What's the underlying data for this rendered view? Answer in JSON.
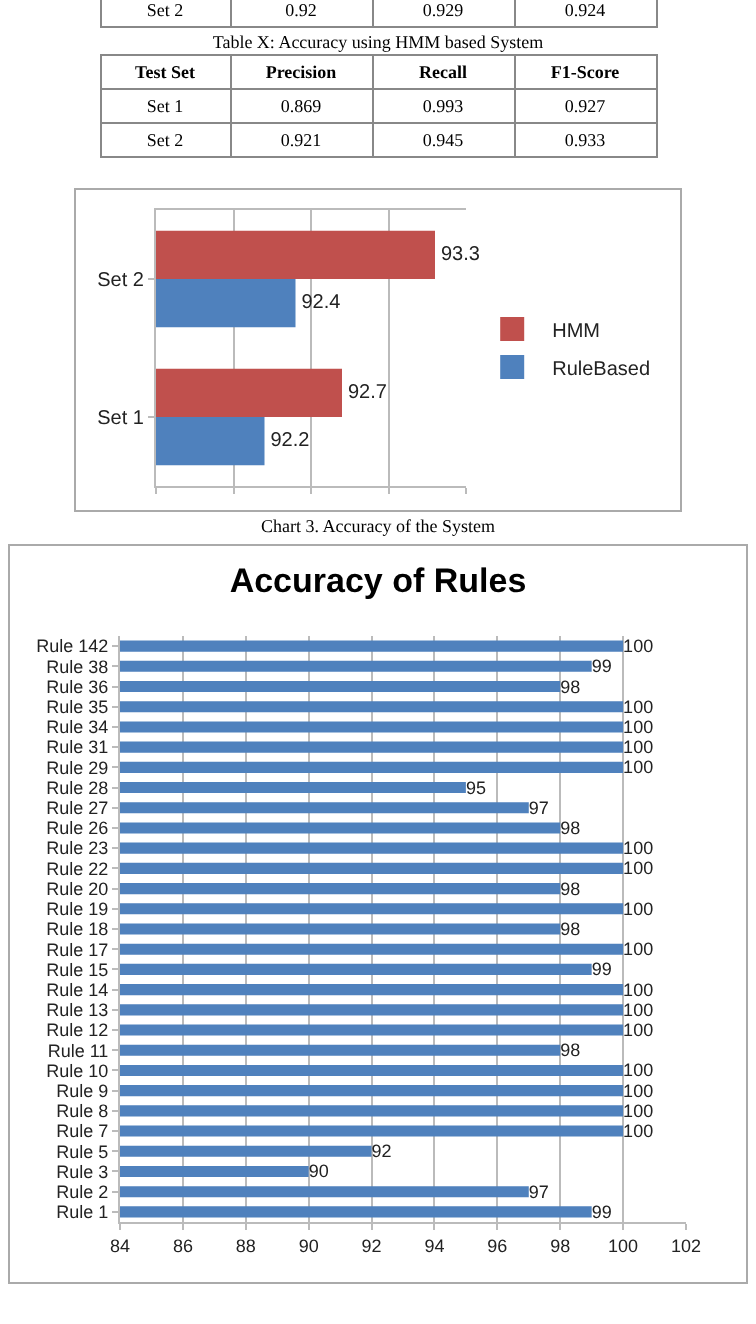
{
  "chart_data": [
    {
      "type": "other",
      "annotations": [
        "Set 2",
        "0.92",
        "0.929",
        "0.924"
      ]
    },
    {
      "type": "other",
      "title": "Table X: Accuracy using HMM based System",
      "annotations": [
        "Test  Set",
        "Precision",
        "Recall",
        "F1-Score",
        "Set 1",
        "0.869",
        "0.993",
        "0.927",
        "Set 2",
        "0.921",
        "0.945",
        "0.933"
      ]
    },
    {
      "type": "bar",
      "orientation": "horizontal",
      "categories": [
        "Set 2",
        "Set 1"
      ],
      "series": [
        {
          "name": "HMM",
          "color": "#c0504d",
          "values": [
            93.3,
            92.7
          ]
        },
        {
          "name": "RuleBased",
          "color": "#4f81bd",
          "values": [
            92.4,
            92.2
          ]
        }
      ],
      "xlim": [
        91.5,
        93.5
      ],
      "xticks": [
        {
          "value": 91.5,
          "label": null
        },
        {
          "value": 92,
          "label": null
        },
        {
          "value": 92.5,
          "label": null
        },
        {
          "value": 93,
          "label": null
        },
        {
          "value": 93.5,
          "label": null
        }
      ],
      "tick_labels": "y",
      "grid": "x",
      "data_labels": true,
      "legend": "right",
      "annotations": [
        "Chart 3. Accuracy of the System"
      ]
    },
    {
      "type": "bar",
      "orientation": "horizontal",
      "title": "Accuracy of Rules",
      "categories": [
        "Rule 142",
        "Rule 38",
        "Rule 36",
        "Rule 35",
        "Rule 34",
        "Rule 31",
        "Rule 29",
        "Rule 28",
        "Rule 27",
        "Rule 26",
        "Rule 23",
        "Rule 22",
        "Rule 20",
        "Rule 19",
        "Rule 18",
        "Rule 17",
        "Rule 15",
        "Rule 14",
        "Rule 13",
        "Rule 12",
        "Rule 11",
        "Rule 10",
        "Rule 9",
        "Rule 8",
        "Rule 7",
        "Rule 5",
        "Rule 3",
        "Rule 2",
        "Rule 1"
      ],
      "values": [
        100,
        99,
        98,
        100,
        100,
        100,
        100,
        95,
        97,
        98,
        100,
        100,
        98,
        100,
        98,
        100,
        99,
        100,
        100,
        100,
        98,
        100,
        100,
        100,
        100,
        92,
        90,
        97,
        99
      ],
      "color": "#4f81bd",
      "xlim": [
        84,
        102
      ],
      "xticks": [
        84,
        86,
        88,
        90,
        92,
        94,
        96,
        98,
        100,
        102
      ],
      "grid": "x",
      "data_labels": true
    }
  ]
}
